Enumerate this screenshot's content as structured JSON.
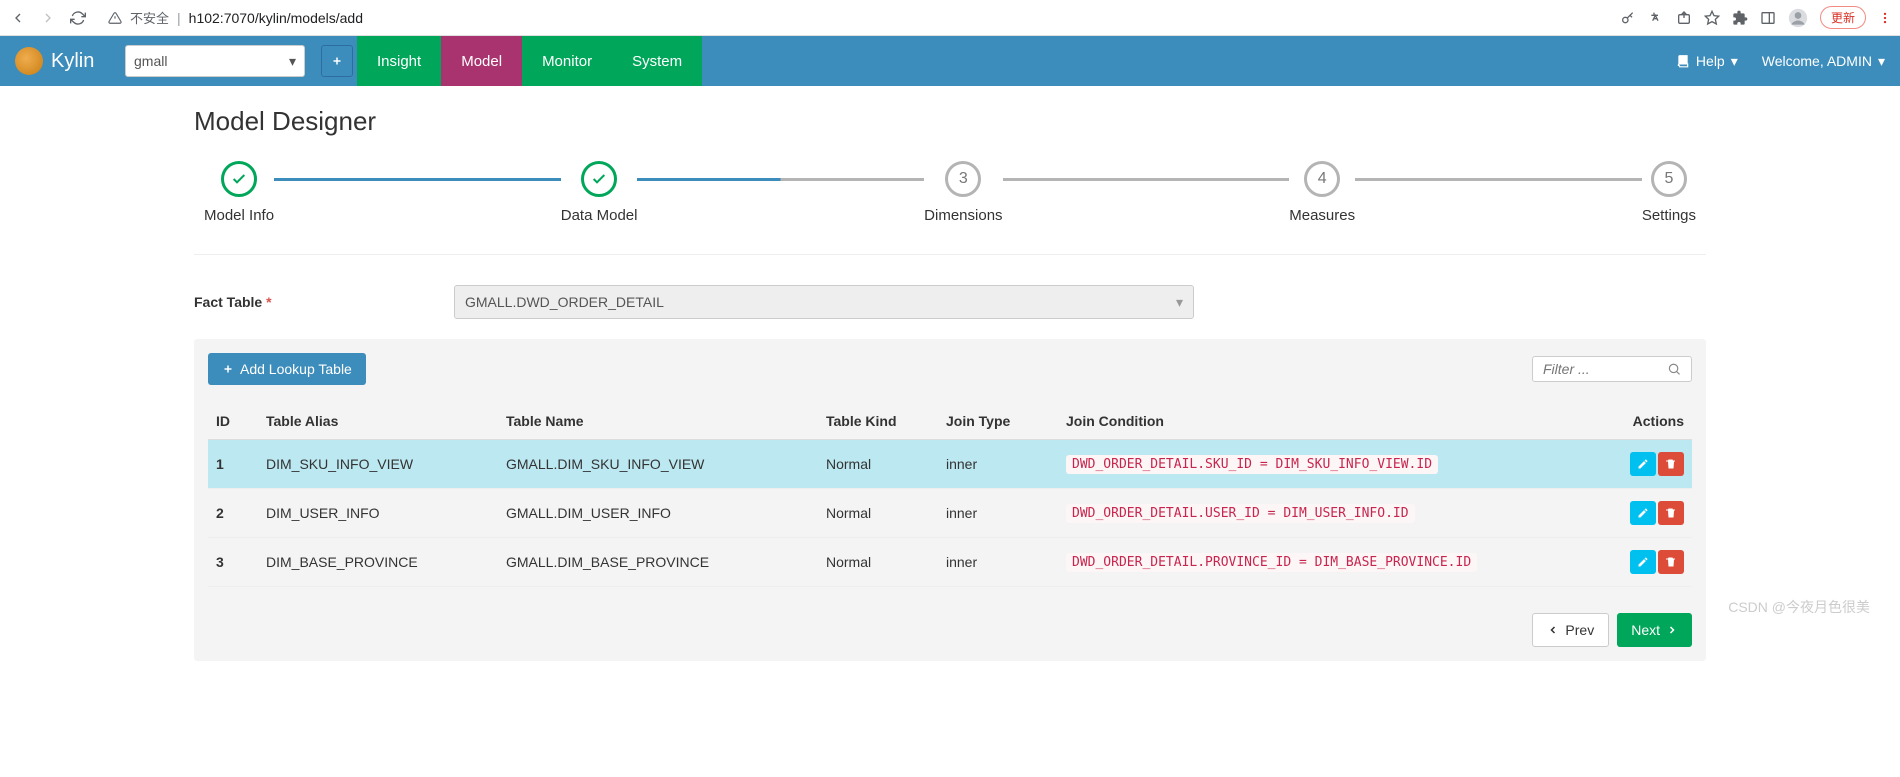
{
  "browser": {
    "insecure_label": "不安全",
    "url": "h102:7070/kylin/models/add",
    "update_label": "更新"
  },
  "navbar": {
    "brand": "Kylin",
    "project": "gmall",
    "tabs": {
      "insight": "Insight",
      "model": "Model",
      "monitor": "Monitor",
      "system": "System"
    },
    "help": "Help",
    "welcome": "Welcome, ADMIN"
  },
  "page": {
    "title": "Model Designer"
  },
  "wizard": {
    "steps": [
      {
        "label": "Model Info",
        "state": "done"
      },
      {
        "label": "Data Model",
        "state": "active"
      },
      {
        "num": "3",
        "label": "Dimensions"
      },
      {
        "num": "4",
        "label": "Measures"
      },
      {
        "num": "5",
        "label": "Settings"
      }
    ]
  },
  "form": {
    "fact_label": "Fact Table",
    "fact_value": "GMALL.DWD_ORDER_DETAIL"
  },
  "panel": {
    "add_lookup": "Add Lookup Table",
    "filter_placeholder": "Filter ...",
    "columns": {
      "id": "ID",
      "alias": "Table Alias",
      "name": "Table Name",
      "kind": "Table Kind",
      "join_type": "Join Type",
      "join_cond": "Join Condition",
      "actions": "Actions"
    },
    "rows": [
      {
        "id": "1",
        "alias": "DIM_SKU_INFO_VIEW",
        "name": "GMALL.DIM_SKU_INFO_VIEW",
        "kind": "Normal",
        "join_type": "inner",
        "cond": "DWD_ORDER_DETAIL.SKU_ID = DIM_SKU_INFO_VIEW.ID",
        "hl": true
      },
      {
        "id": "2",
        "alias": "DIM_USER_INFO",
        "name": "GMALL.DIM_USER_INFO",
        "kind": "Normal",
        "join_type": "inner",
        "cond": "DWD_ORDER_DETAIL.USER_ID = DIM_USER_INFO.ID"
      },
      {
        "id": "3",
        "alias": "DIM_BASE_PROVINCE",
        "name": "GMALL.DIM_BASE_PROVINCE",
        "kind": "Normal",
        "join_type": "inner",
        "cond": "DWD_ORDER_DETAIL.PROVINCE_ID = DIM_BASE_PROVINCE.ID"
      }
    ]
  },
  "footer": {
    "prev": "Prev",
    "next": "Next"
  },
  "watermark": "CSDN @今夜月色很美"
}
